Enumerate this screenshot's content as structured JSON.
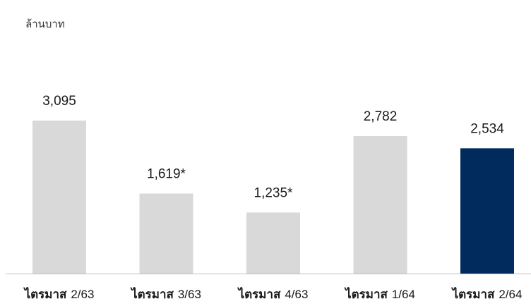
{
  "chart_data": {
    "type": "bar",
    "unit_label": "ล้านบาท",
    "categories": [
      {
        "prefix": "ไตรมาส",
        "period": "2/63"
      },
      {
        "prefix": "ไตรมาส",
        "period": "3/63"
      },
      {
        "prefix": "ไตรมาส",
        "period": "4/63"
      },
      {
        "prefix": "ไตรมาส",
        "period": "1/64"
      },
      {
        "prefix": "ไตรมาส",
        "period": "2/64"
      }
    ],
    "values": [
      3095,
      1619,
      1235,
      2782,
      2534
    ],
    "value_labels": [
      "3,095",
      "1,619*",
      "1,235*",
      "2,782",
      "2,534"
    ],
    "bar_colors": [
      "#d9d9d9",
      "#d9d9d9",
      "#d9d9d9",
      "#d9d9d9",
      "#002b5c"
    ],
    "axis_color": "#bfbfbf",
    "ylim": [
      0,
      3095
    ]
  }
}
